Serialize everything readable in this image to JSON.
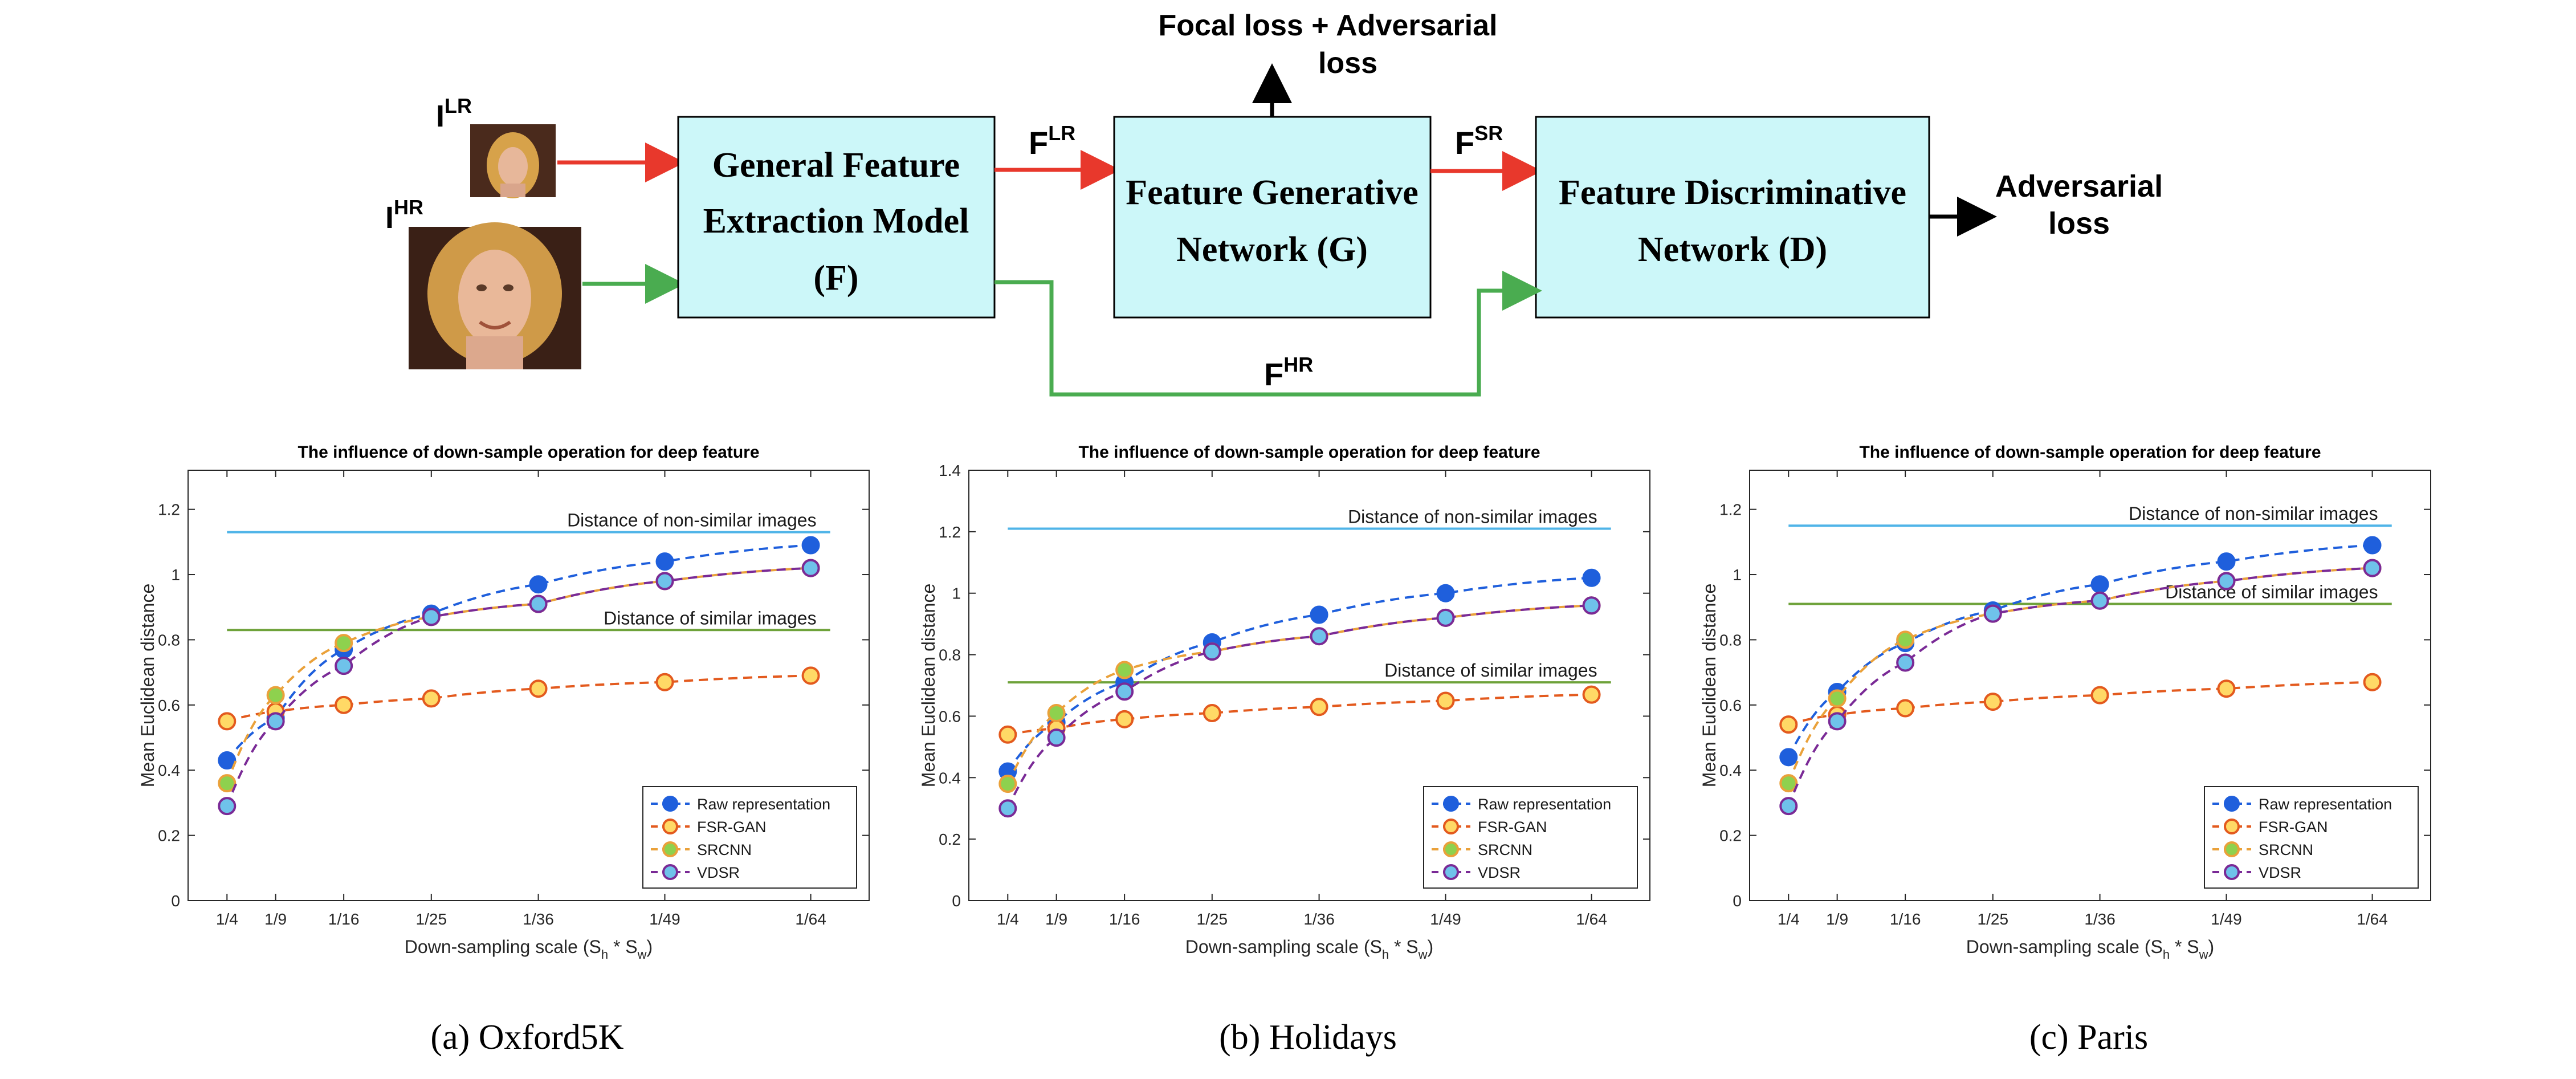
{
  "diagram": {
    "inputs": [
      {
        "label": "I",
        "sup": "LR"
      },
      {
        "label": "I",
        "sup": "HR"
      }
    ],
    "blocks": {
      "f": [
        "General Feature",
        "Extraction Model",
        "(F)"
      ],
      "g": [
        "Feature Generative",
        "Network (G)"
      ],
      "d": [
        "Feature Discriminative",
        "Network (D)"
      ]
    },
    "edges": {
      "f_lr": {
        "label": "F",
        "sup": "LR"
      },
      "f_sr": {
        "label": "F",
        "sup": "SR"
      },
      "f_hr": {
        "label": "F",
        "sup": "HR"
      }
    },
    "losses": {
      "g_loss": [
        "Focal loss + Adversarial",
        "loss"
      ],
      "d_loss": [
        "Adversarial",
        "loss"
      ]
    },
    "colors": {
      "block_fill": "#ccf7f9",
      "lr_arrow": "#e8382c",
      "hr_arrow": "#4aac50"
    }
  },
  "captions": [
    "(a)  Oxford5K",
    "(b)  Holidays",
    "(c)  Paris"
  ],
  "chart_data": [
    {
      "type": "line",
      "title": "The influence of down-sample operation for deep feature",
      "xlabel": "Down-sampling scale (S",
      "xlabel_parts": {
        "s1": "h",
        "mid": " * S",
        "s2": "w",
        "end": ")"
      },
      "ylabel": "Mean Euclidean distance",
      "categories": [
        "1/4",
        "1/9",
        "1/16",
        "1/25",
        "1/36",
        "1/49",
        "1/64"
      ],
      "x": [
        4,
        9,
        16,
        25,
        36,
        49,
        64
      ],
      "xlim": [
        0,
        70
      ],
      "ylim": [
        0,
        1.32
      ],
      "yticks": [
        "0",
        "0.2",
        "0.4",
        "0.6",
        "0.8",
        "1",
        "1.2"
      ],
      "ytick_values": [
        0,
        0.2,
        0.4,
        0.6,
        0.8,
        1.0,
        1.2
      ],
      "legend_position": "bottom-right",
      "series": [
        {
          "name": "Raw representation",
          "values": [
            0.43,
            0.56,
            0.77,
            0.88,
            0.97,
            1.04,
            1.09
          ],
          "color": "#1f5fdc",
          "fill": "#1f5fdc"
        },
        {
          "name": "FSR-GAN",
          "values": [
            0.55,
            0.58,
            0.6,
            0.62,
            0.65,
            0.67,
            0.69
          ],
          "color": "#e35a1e",
          "fill": "#ffd966"
        },
        {
          "name": "SRCNN",
          "values": [
            0.36,
            0.63,
            0.79,
            0.87,
            0.91,
            0.98,
            1.02
          ],
          "color": "#eaa13a",
          "fill": "#8ed14e"
        },
        {
          "name": "VDSR",
          "values": [
            0.29,
            0.55,
            0.72,
            0.87,
            0.91,
            0.98,
            1.02
          ],
          "color": "#7a2a96",
          "fill": "#6fc2ea"
        }
      ],
      "reference_lines": [
        {
          "label": "Distance of non-similar images",
          "value": 1.13,
          "color": "#4fb4e8"
        },
        {
          "label": "Distance of similar images",
          "value": 0.83,
          "color": "#6ea23a"
        }
      ]
    },
    {
      "type": "line",
      "title": "The influence of down-sample operation for deep feature",
      "xlabel": "Down-sampling scale (S",
      "xlabel_parts": {
        "s1": "h",
        "mid": " * S",
        "s2": "w",
        "end": ")"
      },
      "ylabel": "Mean Euclidean distance",
      "categories": [
        "1/4",
        "1/9",
        "1/16",
        "1/25",
        "1/36",
        "1/49",
        "1/64"
      ],
      "x": [
        4,
        9,
        16,
        25,
        36,
        49,
        64
      ],
      "xlim": [
        0,
        70
      ],
      "ylim": [
        0,
        1.4
      ],
      "yticks": [
        "0",
        "0.2",
        "0.4",
        "0.6",
        "0.8",
        "1",
        "1.2",
        "1.4"
      ],
      "ytick_values": [
        0,
        0.2,
        0.4,
        0.6,
        0.8,
        1.0,
        1.2,
        1.4
      ],
      "legend_position": "bottom-right",
      "series": [
        {
          "name": "Raw representation",
          "values": [
            0.42,
            0.58,
            0.71,
            0.84,
            0.93,
            1.0,
            1.05
          ],
          "color": "#1f5fdc",
          "fill": "#1f5fdc"
        },
        {
          "name": "FSR-GAN",
          "values": [
            0.54,
            0.56,
            0.59,
            0.61,
            0.63,
            0.65,
            0.67
          ],
          "color": "#e35a1e",
          "fill": "#ffd966"
        },
        {
          "name": "SRCNN",
          "values": [
            0.38,
            0.61,
            0.75,
            0.81,
            0.86,
            0.92,
            0.96
          ],
          "color": "#eaa13a",
          "fill": "#8ed14e"
        },
        {
          "name": "VDSR",
          "values": [
            0.3,
            0.53,
            0.68,
            0.81,
            0.86,
            0.92,
            0.96
          ],
          "color": "#7a2a96",
          "fill": "#6fc2ea"
        }
      ],
      "reference_lines": [
        {
          "label": "Distance of non-similar images",
          "value": 1.21,
          "color": "#4fb4e8"
        },
        {
          "label": "Distance of similar images",
          "value": 0.71,
          "color": "#6ea23a"
        }
      ]
    },
    {
      "type": "line",
      "title": "The influence of down-sample operation for deep feature",
      "xlabel": "Down-sampling scale (S",
      "xlabel_parts": {
        "s1": "h",
        "mid": " * S",
        "s2": "w",
        "end": ")"
      },
      "ylabel": "Mean Euclidean distance",
      "categories": [
        "1/4",
        "1/9",
        "1/16",
        "1/25",
        "1/36",
        "1/49",
        "1/64"
      ],
      "x": [
        4,
        9,
        16,
        25,
        36,
        49,
        64
      ],
      "xlim": [
        0,
        70
      ],
      "ylim": [
        0,
        1.32
      ],
      "yticks": [
        "0",
        "0.2",
        "0.4",
        "0.6",
        "0.8",
        "1",
        "1.2"
      ],
      "ytick_values": [
        0,
        0.2,
        0.4,
        0.6,
        0.8,
        1.0,
        1.2
      ],
      "legend_position": "bottom-right",
      "series": [
        {
          "name": "Raw representation",
          "values": [
            0.44,
            0.64,
            0.79,
            0.89,
            0.97,
            1.04,
            1.09
          ],
          "color": "#1f5fdc",
          "fill": "#1f5fdc"
        },
        {
          "name": "FSR-GAN",
          "values": [
            0.54,
            0.57,
            0.59,
            0.61,
            0.63,
            0.65,
            0.67
          ],
          "color": "#e35a1e",
          "fill": "#ffd966"
        },
        {
          "name": "SRCNN",
          "values": [
            0.36,
            0.62,
            0.8,
            0.88,
            0.92,
            0.98,
            1.02
          ],
          "color": "#eaa13a",
          "fill": "#8ed14e"
        },
        {
          "name": "VDSR",
          "values": [
            0.29,
            0.55,
            0.73,
            0.88,
            0.92,
            0.98,
            1.02
          ],
          "color": "#7a2a96",
          "fill": "#6fc2ea"
        }
      ],
      "reference_lines": [
        {
          "label": "Distance of non-similar images",
          "value": 1.15,
          "color": "#4fb4e8"
        },
        {
          "label": "Distance of similar images",
          "value": 0.91,
          "color": "#6ea23a"
        }
      ]
    }
  ]
}
